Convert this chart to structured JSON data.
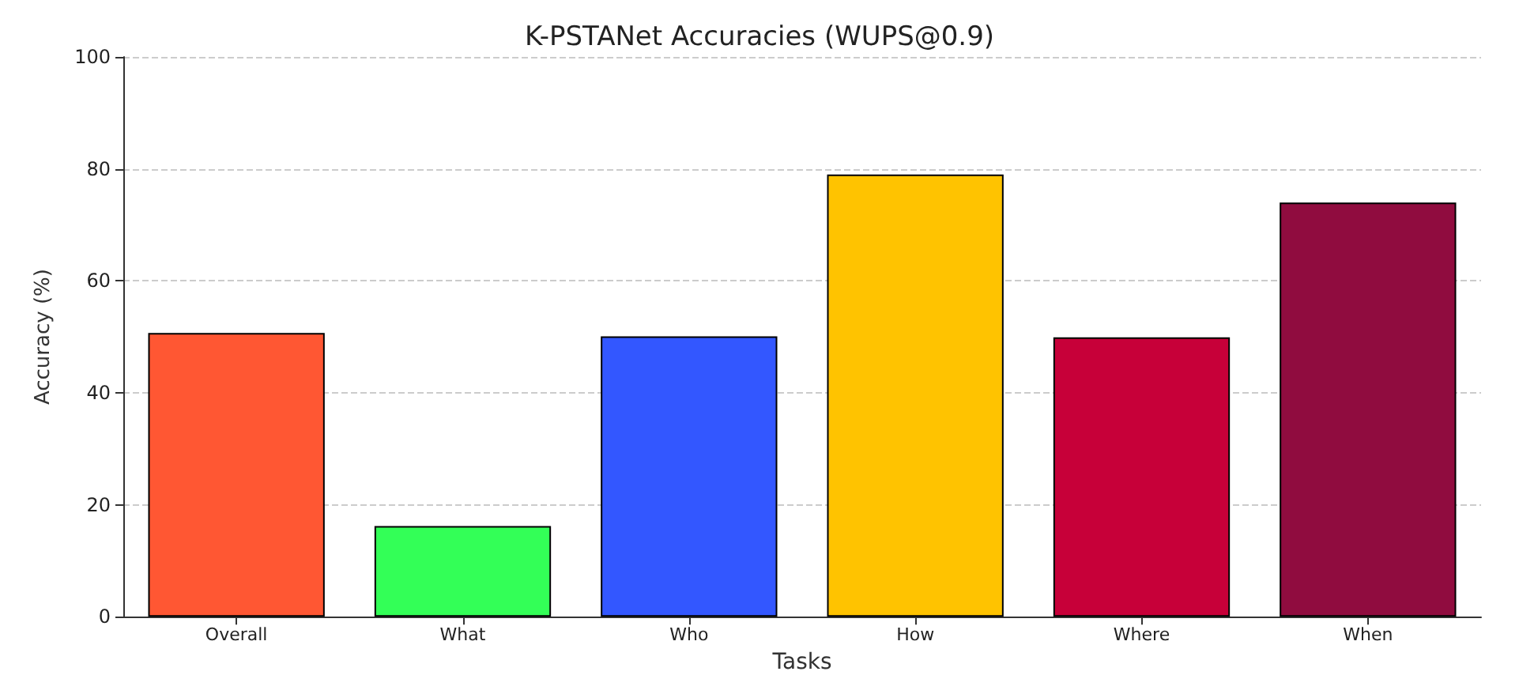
{
  "chart_data": {
    "type": "bar",
    "title": "K-PSTANet Accuracies (WUPS@0.9)",
    "xlabel": "Tasks",
    "ylabel": "Accuracy (%)",
    "categories": [
      "Overall",
      "What",
      "Who",
      "How",
      "Where",
      "When"
    ],
    "values": [
      50.7,
      16.2,
      50.1,
      79.0,
      49.9,
      74.0
    ],
    "colors": [
      "#ff5733",
      "#33ff57",
      "#3357ff",
      "#ffc300",
      "#c70039",
      "#900c3f"
    ],
    "ylim": [
      0,
      100
    ],
    "yticks": [
      0,
      20,
      40,
      60,
      80,
      100
    ],
    "grid": "y"
  }
}
